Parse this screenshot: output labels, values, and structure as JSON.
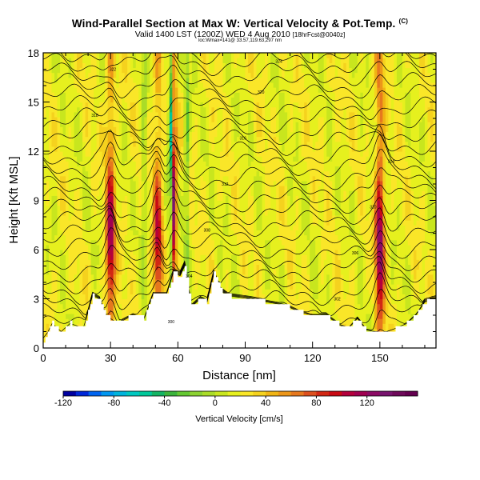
{
  "header": {
    "title": "Wind-Parallel Section at Max W: Vertical Velocity & Pot.Temp.",
    "copyright": "(C)",
    "valid": "Valid 1400 LST (1200Z) WED 4 Aug 2010",
    "run_info": "[18hrFcst@0040z]",
    "location_info": "loc:Wmax=141@ 33.57,119.63,297 nm"
  },
  "chart_data": {
    "type": "heatmap",
    "xlabel": "Distance [nm]",
    "ylabel": "Height [Kft MSL]",
    "xlim": [
      0,
      175
    ],
    "ylim": [
      0,
      18
    ],
    "xticks": [
      "0",
      "30",
      "60",
      "90",
      "120",
      "150"
    ],
    "yticks": [
      "0",
      "3",
      "6",
      "9",
      "12",
      "15",
      "18"
    ],
    "colorbar": {
      "label": "Vertical Velocity [cm/s]",
      "range": [
        -120,
        160
      ],
      "step": 10,
      "ticks": [
        "-120",
        "-80",
        "-40",
        "0",
        "40",
        "80",
        "120"
      ]
    },
    "updraft_cores": [
      {
        "x": 30,
        "peak": 100
      },
      {
        "x": 58,
        "peak": 140
      },
      {
        "x": 150,
        "peak": 110
      },
      {
        "x": 51,
        "peak": 80
      }
    ],
    "downdraft_cores": [
      {
        "x": 57,
        "peak": -110
      },
      {
        "x": 64,
        "peak": -40
      },
      {
        "x": 45,
        "peak": -30
      }
    ],
    "terrain": [
      [
        0,
        0.4
      ],
      [
        4,
        1.5
      ],
      [
        8,
        1.0
      ],
      [
        12,
        1.5
      ],
      [
        18,
        1.2
      ],
      [
        22,
        3.2
      ],
      [
        25,
        3.0
      ],
      [
        28,
        2.0
      ],
      [
        33,
        1.5
      ],
      [
        40,
        2.0
      ],
      [
        45,
        1.8
      ],
      [
        49,
        3.3
      ],
      [
        55,
        3.3
      ],
      [
        58,
        4.6
      ],
      [
        61,
        4.4
      ],
      [
        63,
        5.0
      ],
      [
        66,
        2.5
      ],
      [
        70,
        3.0
      ],
      [
        73,
        2.8
      ],
      [
        76,
        4.5
      ],
      [
        79,
        3.5
      ],
      [
        82,
        3.2
      ],
      [
        92,
        3.0
      ],
      [
        100,
        2.8
      ],
      [
        108,
        2.6
      ],
      [
        114,
        2.2
      ],
      [
        120,
        2.0
      ],
      [
        126,
        2.0
      ],
      [
        132,
        1.4
      ],
      [
        136,
        1.2
      ],
      [
        140,
        1.8
      ],
      [
        144,
        1.1
      ],
      [
        148,
        1.0
      ],
      [
        153,
        1.0
      ],
      [
        157,
        1.2
      ],
      [
        162,
        1.5
      ],
      [
        166,
        2.0
      ],
      [
        170,
        2.8
      ],
      [
        175,
        3.0
      ]
    ],
    "theta_contour_labels": [
      "300",
      "302",
      "304",
      "306",
      "308",
      "310",
      "312",
      "314",
      "316",
      "318",
      "320",
      "322",
      "324",
      "326"
    ]
  },
  "colors": {
    "colorbar_scale": [
      "#0000a0",
      "#0028d8",
      "#0064f0",
      "#0096f0",
      "#00b4dc",
      "#00c8c0",
      "#00c89a",
      "#14b464",
      "#3cb43c",
      "#64c832",
      "#8cd232",
      "#aadc28",
      "#c8e61e",
      "#e6f01e",
      "#fae628",
      "#f5d21e",
      "#f0b414",
      "#ec9619",
      "#e6781e",
      "#dc501e",
      "#d22814",
      "#c80a14",
      "#b4003c",
      "#a00050",
      "#8c0a64",
      "#78146e",
      "#6e0a5a",
      "#640050"
    ]
  }
}
